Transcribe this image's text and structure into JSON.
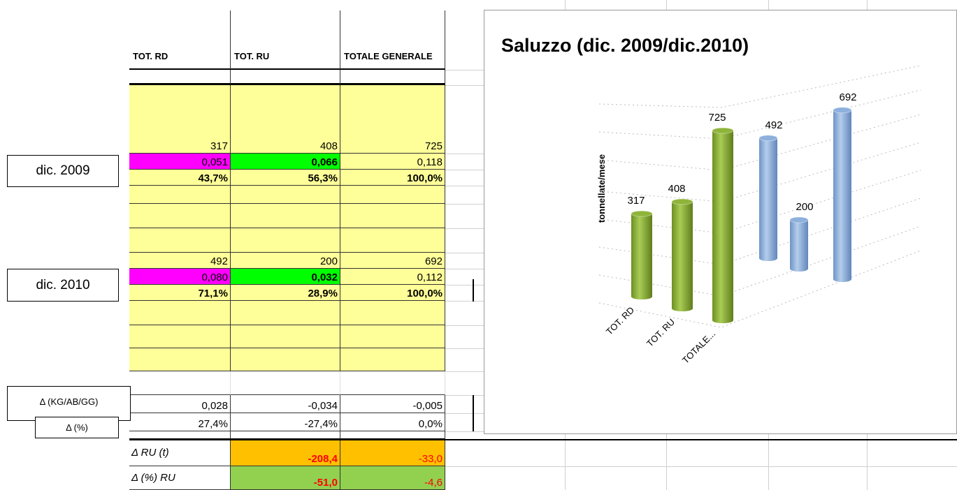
{
  "table": {
    "headers": [
      "TOT. RD",
      "TOT. RU",
      "TOTALE GENERALE"
    ],
    "periods": [
      {
        "label": "dic. 2009",
        "values": [
          "317",
          "408",
          "725"
        ],
        "per_capita": [
          "0,051",
          "0,066",
          "0,118"
        ],
        "shares": [
          "43,7%",
          "56,3%",
          "100,0%"
        ]
      },
      {
        "label": "dic. 2010",
        "values": [
          "492",
          "200",
          "692"
        ],
        "per_capita": [
          "0,080",
          "0,032",
          "0,112"
        ],
        "shares": [
          "71,1%",
          "28,9%",
          "100,0%"
        ]
      }
    ],
    "delta_kg": {
      "label": "Δ (KG/AB/GG)",
      "values": [
        "0,028",
        "-0,034",
        "-0,005"
      ]
    },
    "delta_pct": {
      "label": "Δ (%)",
      "values": [
        "27,4%",
        "-27,4%",
        "0,0%"
      ]
    },
    "delta_ru": {
      "label": "Δ RU (t)",
      "values": [
        "-208,4",
        "-33,0"
      ]
    },
    "delta_ru_pct": {
      "label": "Δ (%) RU",
      "values": [
        "-51,0",
        "-4,6"
      ]
    }
  },
  "chart_data": {
    "type": "bar3d",
    "title": "Saluzzo (dic. 2009/dic.2010)",
    "y_label": "tonnellate/mese",
    "categories": [
      "TOT. RD",
      "TOT. RU",
      "TOTALE..."
    ],
    "series": [
      {
        "color": "#8fb43a",
        "values": [
          317,
          408,
          725
        ]
      },
      {
        "color": "#8db0dc",
        "values": [
          492,
          200,
          692
        ]
      }
    ],
    "ylim": [
      0,
      800
    ]
  }
}
